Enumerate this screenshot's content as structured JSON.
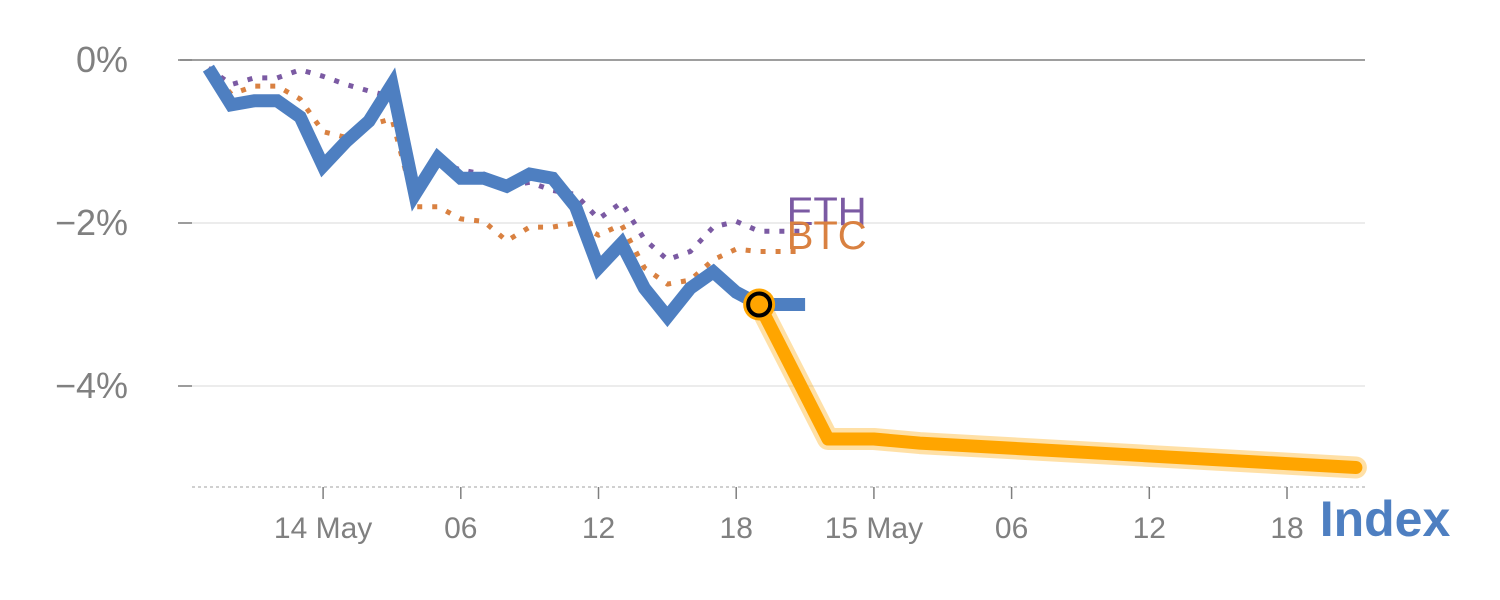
{
  "chart_data": {
    "type": "line",
    "title": "",
    "xlabel": "",
    "ylabel": "",
    "ylim": [
      -5.2,
      0
    ],
    "y_ticks": [
      {
        "value": 0,
        "label": "0%"
      },
      {
        "value": -2,
        "label": "−2%"
      },
      {
        "value": -4,
        "label": "−4%"
      }
    ],
    "x_ticks": [
      {
        "hour": 6,
        "label": "14 May"
      },
      {
        "hour": 12,
        "label": "06"
      },
      {
        "hour": 18,
        "label": "12"
      },
      {
        "hour": 24,
        "label": "18"
      },
      {
        "hour": 30,
        "label": "15 May"
      },
      {
        "hour": 36,
        "label": "06"
      },
      {
        "hour": 42,
        "label": "12"
      },
      {
        "hour": 48,
        "label": "18"
      }
    ],
    "xlim": [
      0.2,
      52.2
    ],
    "index_label": "Index",
    "series": [
      {
        "name": "Index",
        "style": "solid",
        "color": "#4e7fc1",
        "x": [
          1,
          2,
          3,
          4,
          5,
          6,
          7,
          8,
          9,
          10,
          11,
          12,
          13,
          14,
          15,
          16,
          17,
          18,
          19,
          20,
          21,
          22,
          23,
          24,
          25,
          26,
          27
        ],
        "y": [
          -0.1,
          -0.55,
          -0.5,
          -0.5,
          -0.7,
          -1.3,
          -1.0,
          -0.75,
          -0.3,
          -1.65,
          -1.2,
          -1.45,
          -1.45,
          -1.55,
          -1.4,
          -1.45,
          -1.8,
          -2.55,
          -2.25,
          -2.8,
          -3.15,
          -2.8,
          -2.6,
          -2.85,
          -3.0,
          -3.0,
          -3.0
        ]
      },
      {
        "name": "ETH",
        "style": "dotted",
        "color": "#7b5aa3",
        "x": [
          1,
          2,
          3,
          4,
          5,
          6,
          7,
          8,
          9,
          10,
          11,
          12,
          13,
          14,
          15,
          16,
          17,
          18,
          19,
          20,
          21,
          22,
          23,
          24,
          25,
          26,
          27
        ],
        "y": [
          -0.1,
          -0.3,
          -0.22,
          -0.22,
          -0.12,
          -0.2,
          -0.3,
          -0.38,
          -0.45,
          -1.6,
          -1.25,
          -1.35,
          -1.4,
          -1.55,
          -1.5,
          -1.6,
          -1.65,
          -1.95,
          -1.75,
          -2.2,
          -2.45,
          -2.35,
          -2.05,
          -1.98,
          -2.1,
          -2.1,
          -2.1
        ]
      },
      {
        "name": "BTC",
        "style": "dotted",
        "color": "#d98141",
        "x": [
          1,
          2,
          3,
          4,
          5,
          6,
          7,
          8,
          9,
          10,
          11,
          12,
          13,
          14,
          15,
          16,
          17,
          18,
          19,
          20,
          21,
          22,
          23,
          24,
          25,
          26,
          27
        ],
        "y": [
          -0.1,
          -0.42,
          -0.32,
          -0.32,
          -0.48,
          -0.88,
          -0.95,
          -0.8,
          -0.72,
          -1.8,
          -1.8,
          -1.95,
          -1.98,
          -2.22,
          -2.05,
          -2.05,
          -2.0,
          -2.15,
          -2.02,
          -2.55,
          -2.75,
          -2.7,
          -2.45,
          -2.32,
          -2.35,
          -2.35,
          -2.35
        ]
      },
      {
        "name": "Forecast",
        "style": "thick",
        "color": "#ffa500",
        "x": [
          25,
          28,
          30,
          32,
          51
        ],
        "y": [
          -3.0,
          -4.65,
          -4.65,
          -4.7,
          -5.0
        ]
      }
    ],
    "marker": {
      "x": 25,
      "y": -3.0
    },
    "labels": [
      {
        "text": "ETH",
        "color": "#7b5aa3",
        "x": 26.2,
        "y": -1.85
      },
      {
        "text": "BTC",
        "color": "#d98141",
        "x": 26.2,
        "y": -2.15
      }
    ]
  }
}
